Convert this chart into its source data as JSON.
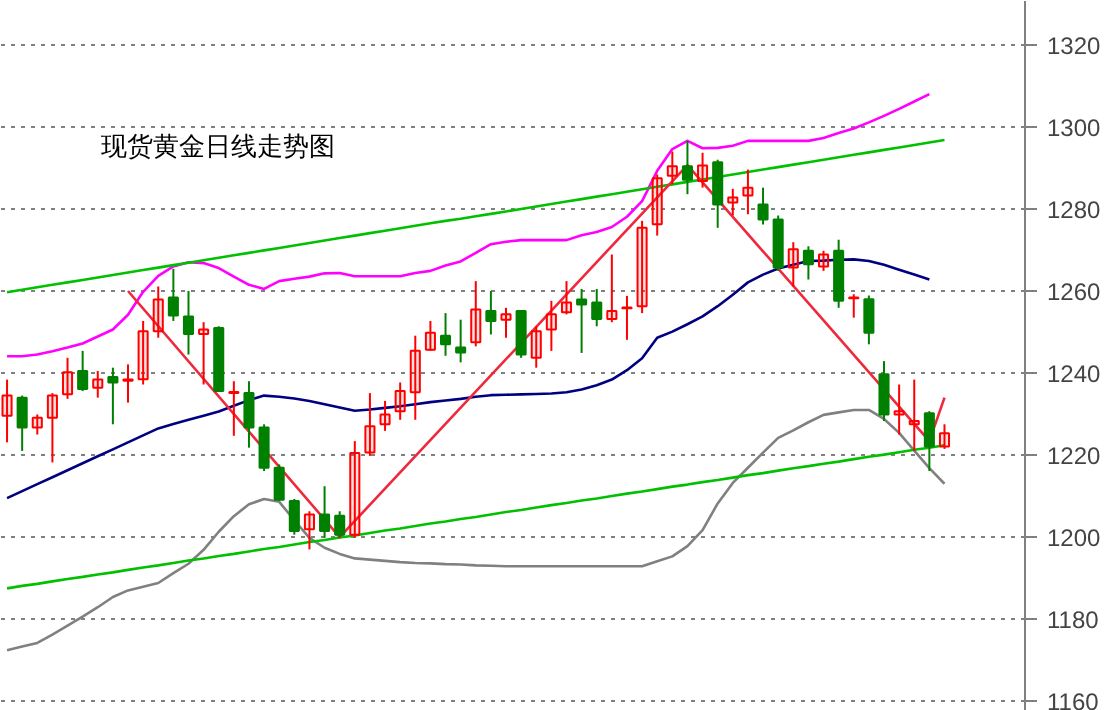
{
  "chart_data": {
    "type": "candlestick",
    "title": "现货黄金日线走势图",
    "categories": [
      null,
      null,
      null,
      null,
      null,
      null,
      null,
      null,
      null,
      null,
      null,
      null,
      null,
      null,
      null,
      null,
      null,
      null,
      null,
      null,
      null,
      null,
      null,
      null,
      null,
      null,
      null,
      null,
      null,
      null,
      null,
      null,
      null,
      null,
      null,
      null,
      null,
      null,
      null,
      null,
      null,
      null,
      null,
      null,
      null,
      null,
      null,
      null,
      null,
      null,
      null,
      null,
      null,
      null,
      null,
      null,
      null,
      null,
      null,
      null,
      null,
      null,
      null
    ],
    "ohlc": [
      [
        1229.6,
        1238.4,
        1223.1,
        1234.5
      ],
      [
        1234.0,
        1234.5,
        1221.0,
        1226.7
      ],
      [
        1226.7,
        1229.9,
        1225.0,
        1229.1
      ],
      [
        1229.1,
        1235.1,
        1218.2,
        1234.5
      ],
      [
        1234.8,
        1243.7,
        1233.7,
        1240.2
      ],
      [
        1240.5,
        1245.4,
        1235.6,
        1236.1
      ],
      [
        1236.4,
        1240.5,
        1234.0,
        1238.4
      ],
      [
        1239.0,
        1241.3,
        1227.5,
        1237.7
      ],
      [
        1238.1,
        1242.1,
        1232.8,
        1238.4
      ],
      [
        1238.5,
        1252.7,
        1237.2,
        1250.2
      ],
      [
        1250.2,
        1261.1,
        1248.6,
        1257.9
      ],
      [
        1258.4,
        1265.4,
        1252.7,
        1254.0
      ],
      [
        1253.8,
        1260.0,
        1244.5,
        1249.5
      ],
      [
        1249.5,
        1252.4,
        1237.2,
        1250.6
      ],
      [
        1251.0,
        1251.4,
        1235.6,
        1235.6
      ],
      [
        1235.1,
        1238.0,
        1224.7,
        1235.4
      ],
      [
        1235.1,
        1238.0,
        1221.8,
        1226.7
      ],
      [
        1226.7,
        1227.5,
        1216.1,
        1216.9
      ],
      [
        1216.9,
        1217.7,
        1208.8,
        1209.1
      ],
      [
        1208.8,
        1209.3,
        1200.6,
        1201.5
      ],
      [
        1201.9,
        1206.3,
        1197.0,
        1205.5
      ],
      [
        1205.5,
        1212.4,
        1199.8,
        1201.5
      ],
      [
        1205.2,
        1206.3,
        1199.8,
        1200.6
      ],
      [
        1200.6,
        1223.4,
        1199.8,
        1220.5
      ],
      [
        1220.6,
        1235.1,
        1219.8,
        1227.0
      ],
      [
        1227.5,
        1233.2,
        1225.9,
        1229.9
      ],
      [
        1230.7,
        1237.7,
        1228.6,
        1235.6
      ],
      [
        1235.3,
        1249.1,
        1228.6,
        1245.4
      ],
      [
        1245.7,
        1252.7,
        1245.4,
        1249.8
      ],
      [
        1249.1,
        1254.6,
        1244.2,
        1247.0
      ],
      [
        1246.2,
        1253.0,
        1242.6,
        1245.0
      ],
      [
        1247.5,
        1262.4,
        1246.5,
        1255.5
      ],
      [
        1255.1,
        1260.0,
        1249.4,
        1252.7
      ],
      [
        1253.0,
        1255.9,
        1248.6,
        1254.3
      ],
      [
        1255.1,
        1255.1,
        1243.7,
        1244.5
      ],
      [
        1243.7,
        1251.4,
        1241.3,
        1250.2
      ],
      [
        1250.6,
        1257.6,
        1245.4,
        1254.3
      ],
      [
        1254.8,
        1262.4,
        1254.3,
        1257.2
      ],
      [
        1257.9,
        1260.5,
        1244.9,
        1256.7
      ],
      [
        1257.2,
        1260.5,
        1251.4,
        1253.2
      ],
      [
        1253.2,
        1268.9,
        1252.4,
        1255.1
      ],
      [
        1255.8,
        1258.8,
        1248.1,
        1256.0
      ],
      [
        1256.3,
        1277.1,
        1254.6,
        1275.4
      ],
      [
        1276.3,
        1288.4,
        1273.5,
        1287.5
      ],
      [
        1288.1,
        1294.0,
        1286.0,
        1290.4
      ],
      [
        1290.4,
        1296.6,
        1283.6,
        1287.1
      ],
      [
        1286.8,
        1293.7,
        1285.2,
        1290.6
      ],
      [
        1291.4,
        1292.0,
        1275.4,
        1281.1
      ],
      [
        1281.6,
        1284.9,
        1278.4,
        1282.8
      ],
      [
        1283.3,
        1289.6,
        1278.7,
        1285.2
      ],
      [
        1281.1,
        1285.2,
        1276.2,
        1277.4
      ],
      [
        1277.4,
        1278.4,
        1264.9,
        1265.7
      ],
      [
        1265.7,
        1271.9,
        1261.1,
        1270.2
      ],
      [
        1269.8,
        1270.9,
        1262.8,
        1266.5
      ],
      [
        1266.0,
        1269.8,
        1264.9,
        1268.9
      ],
      [
        1269.8,
        1272.5,
        1255.9,
        1257.6
      ],
      [
        1258.2,
        1259.2,
        1253.5,
        1258.4
      ],
      [
        1258.0,
        1258.9,
        1247.0,
        1249.8
      ],
      [
        1239.7,
        1242.9,
        1228.3,
        1229.9
      ],
      [
        1229.9,
        1237.2,
        1225.0,
        1230.7
      ],
      [
        1227.5,
        1238.4,
        1221.0,
        1228.3
      ],
      [
        1230.2,
        1230.7,
        1216.1,
        1222.1
      ],
      [
        1222.1,
        1227.5,
        1221.5,
        1225.3
      ]
    ],
    "colors": [
      "#ff0000",
      "#008000",
      "#ff0000",
      "#ff0000",
      "#ff0000",
      "#008000",
      "#ff0000",
      "#008000",
      "#ff0000",
      "#ff0000",
      "#ff0000",
      "#008000",
      "#008000",
      "#ff0000",
      "#008000",
      "#ff0000",
      "#008000",
      "#008000",
      "#008000",
      "#008000",
      "#ff0000",
      "#008000",
      "#008000",
      "#ff0000",
      "#ff0000",
      "#ff0000",
      "#ff0000",
      "#ff0000",
      "#ff0000",
      "#008000",
      "#008000",
      "#ff0000",
      "#008000",
      "#ff0000",
      "#008000",
      "#ff0000",
      "#ff0000",
      "#ff0000",
      "#008000",
      "#008000",
      "#ff0000",
      "#ff0000",
      "#ff0000",
      "#ff0000",
      "#ff0000",
      "#008000",
      "#ff0000",
      "#008000",
      "#ff0000",
      "#ff0000",
      "#008000",
      "#008000",
      "#ff0000",
      "#008000",
      "#ff0000",
      "#008000",
      "#ff0000",
      "#008000",
      "#008000",
      "#ff0000",
      "#ff0000",
      "#008000",
      "#ff0000"
    ],
    "series": [
      {
        "type": "line",
        "color": "#ff00ff",
        "values": [
          1244.1,
          1244.1,
          1244.5,
          1245.3,
          1246.2,
          1247.2,
          1248.9,
          1250.6,
          1254.2,
          1259.8,
          1263.7,
          1266.0,
          1267.0,
          1266.8,
          1265.6,
          1263.5,
          1261.5,
          1260.5,
          1262.4,
          1263.0,
          1263.5,
          1264.3,
          1264.4,
          1263.6,
          1263.6,
          1263.6,
          1263.6,
          1264.4,
          1264.9,
          1266.2,
          1267.2,
          1269.3,
          1271.4,
          1272.0,
          1272.4,
          1272.4,
          1272.4,
          1272.4,
          1273.6,
          1274.4,
          1275.6,
          1278.1,
          1281.9,
          1289.3,
          1294.6,
          1296.6,
          1294.8,
          1294.9,
          1295.4,
          1296.6,
          1296.6,
          1296.6,
          1296.6,
          1296.6,
          1297.3,
          1298.5,
          1299.6,
          1301.1,
          1302.7,
          1304.4,
          1306.2,
          1308.0,
          null
        ]
      },
      {
        "type": "line",
        "color": "#000080",
        "values": [
          1209.5,
          1211.2,
          1212.9,
          1214.6,
          1216.3,
          1218.0,
          1219.7,
          1221.4,
          1223.1,
          1224.8,
          1226.5,
          1227.6,
          1228.6,
          1229.6,
          1230.6,
          1232.0,
          1233.4,
          1234.5,
          1234.2,
          1233.8,
          1233.2,
          1232.4,
          1231.6,
          1230.8,
          1231.1,
          1231.5,
          1231.9,
          1232.4,
          1232.9,
          1233.3,
          1233.7,
          1234.2,
          1234.6,
          1234.7,
          1234.8,
          1234.9,
          1235.0,
          1235.3,
          1236.0,
          1237.0,
          1238.4,
          1240.7,
          1243.6,
          1248.6,
          1250.1,
          1251.9,
          1253.8,
          1256.3,
          1259.1,
          1262.1,
          1264.0,
          1265.5,
          1266.4,
          1267.3,
          1267.4,
          1267.6,
          1267.7,
          1267.3,
          1266.4,
          1265.2,
          1264.0,
          1262.8,
          null
        ]
      },
      {
        "type": "line",
        "color": "#808080",
        "values": [
          1172.4,
          1173.3,
          1174.2,
          1176.2,
          1178.4,
          1180.6,
          1182.9,
          1185.4,
          1187.0,
          1187.9,
          1188.8,
          1191.2,
          1193.5,
          1196.9,
          1201.3,
          1205.1,
          1208.0,
          1209.3,
          1208.6,
          1204.1,
          1199.8,
          1197.4,
          1195.9,
          1194.8,
          1194.5,
          1194.2,
          1193.9,
          1193.7,
          1193.6,
          1193.4,
          1193.3,
          1193.1,
          1193.0,
          1192.9,
          1192.9,
          1192.9,
          1192.9,
          1192.9,
          1192.9,
          1192.9,
          1192.9,
          1192.9,
          1192.9,
          1194.1,
          1195.3,
          1197.8,
          1201.7,
          1208.2,
          1213.2,
          1216.9,
          1220.6,
          1224.2,
          1226.0,
          1228.0,
          1229.8,
          1230.4,
          1231.0,
          1231.0,
          1228.8,
          1225.4,
          1221.1,
          1216.8,
          1213.0
        ]
      },
      {
        "type": "line",
        "color": "#00c000",
        "values": [
          1259.7,
          1260.3,
          1260.9,
          1261.5,
          1262.1,
          1262.7,
          1263.3,
          1263.9,
          1264.5,
          1265.1,
          1265.7,
          1266.3,
          1266.9,
          1267.5,
          1268.1,
          1268.7,
          1269.3,
          1269.9,
          1270.5,
          1271.1,
          1271.7,
          1272.3,
          1272.9,
          1273.5,
          1274.1,
          1274.7,
          1275.3,
          1275.9,
          1276.5,
          1277.1,
          1277.6,
          1278.2,
          1278.8,
          1279.4,
          1280.0,
          1280.6,
          1281.2,
          1281.8,
          1282.4,
          1283.0,
          1283.6,
          1284.2,
          1284.8,
          1285.4,
          1286.0,
          1286.6,
          1287.2,
          1287.8,
          1288.4,
          1289.0,
          1289.6,
          1290.2,
          1290.8,
          1291.4,
          1292.0,
          1292.6,
          1293.2,
          1293.8,
          1294.4,
          1295.0,
          1295.6,
          1296.2,
          1296.8
        ]
      },
      {
        "type": "line",
        "color": "#00c000",
        "values": [
          1187.5,
          1188.1,
          1188.6,
          1189.2,
          1189.8,
          1190.3,
          1190.9,
          1191.4,
          1192.0,
          1192.6,
          1193.1,
          1193.7,
          1194.3,
          1194.8,
          1195.4,
          1195.9,
          1196.5,
          1197.1,
          1197.6,
          1198.2,
          1198.8,
          1199.3,
          1199.9,
          1200.4,
          1201.0,
          1201.6,
          1202.1,
          1202.7,
          1203.3,
          1203.8,
          1204.4,
          1204.9,
          1205.5,
          1206.1,
          1206.6,
          1207.2,
          1207.8,
          1208.3,
          1208.9,
          1209.4,
          1210.0,
          1210.6,
          1211.1,
          1211.7,
          1212.3,
          1212.8,
          1213.4,
          1213.9,
          1214.5,
          1215.1,
          1215.6,
          1216.2,
          1216.8,
          1217.3,
          1217.9,
          1218.4,
          1219.0,
          1219.6,
          1220.1,
          1220.7,
          1221.3,
          1221.8,
          1222.4
        ]
      },
      {
        "type": "line",
        "color": "#f0283c",
        "values": [
          null,
          null,
          null,
          null,
          null,
          null,
          null,
          null,
          1260.0,
          null,
          null,
          null,
          null,
          null,
          null,
          null,
          null,
          null,
          null,
          null,
          null,
          null,
          1200.0,
          null,
          null,
          null,
          null,
          null,
          null,
          null,
          null,
          null,
          null,
          null,
          null,
          null,
          null,
          null,
          null,
          null,
          null,
          null,
          null,
          null,
          null,
          1290.7,
          null,
          null,
          null,
          null,
          null,
          null,
          null,
          null,
          null,
          null,
          null,
          null,
          null,
          null,
          null,
          1223.4,
          1234.0
        ]
      }
    ],
    "ylim": [
      1157.6,
      1330.7
    ],
    "yticks": [
      1160,
      1180,
      1200,
      1220,
      1240,
      1260,
      1280,
      1300,
      1320
    ],
    "grid": "y",
    "tick_labels": "y",
    "marker": "none"
  }
}
